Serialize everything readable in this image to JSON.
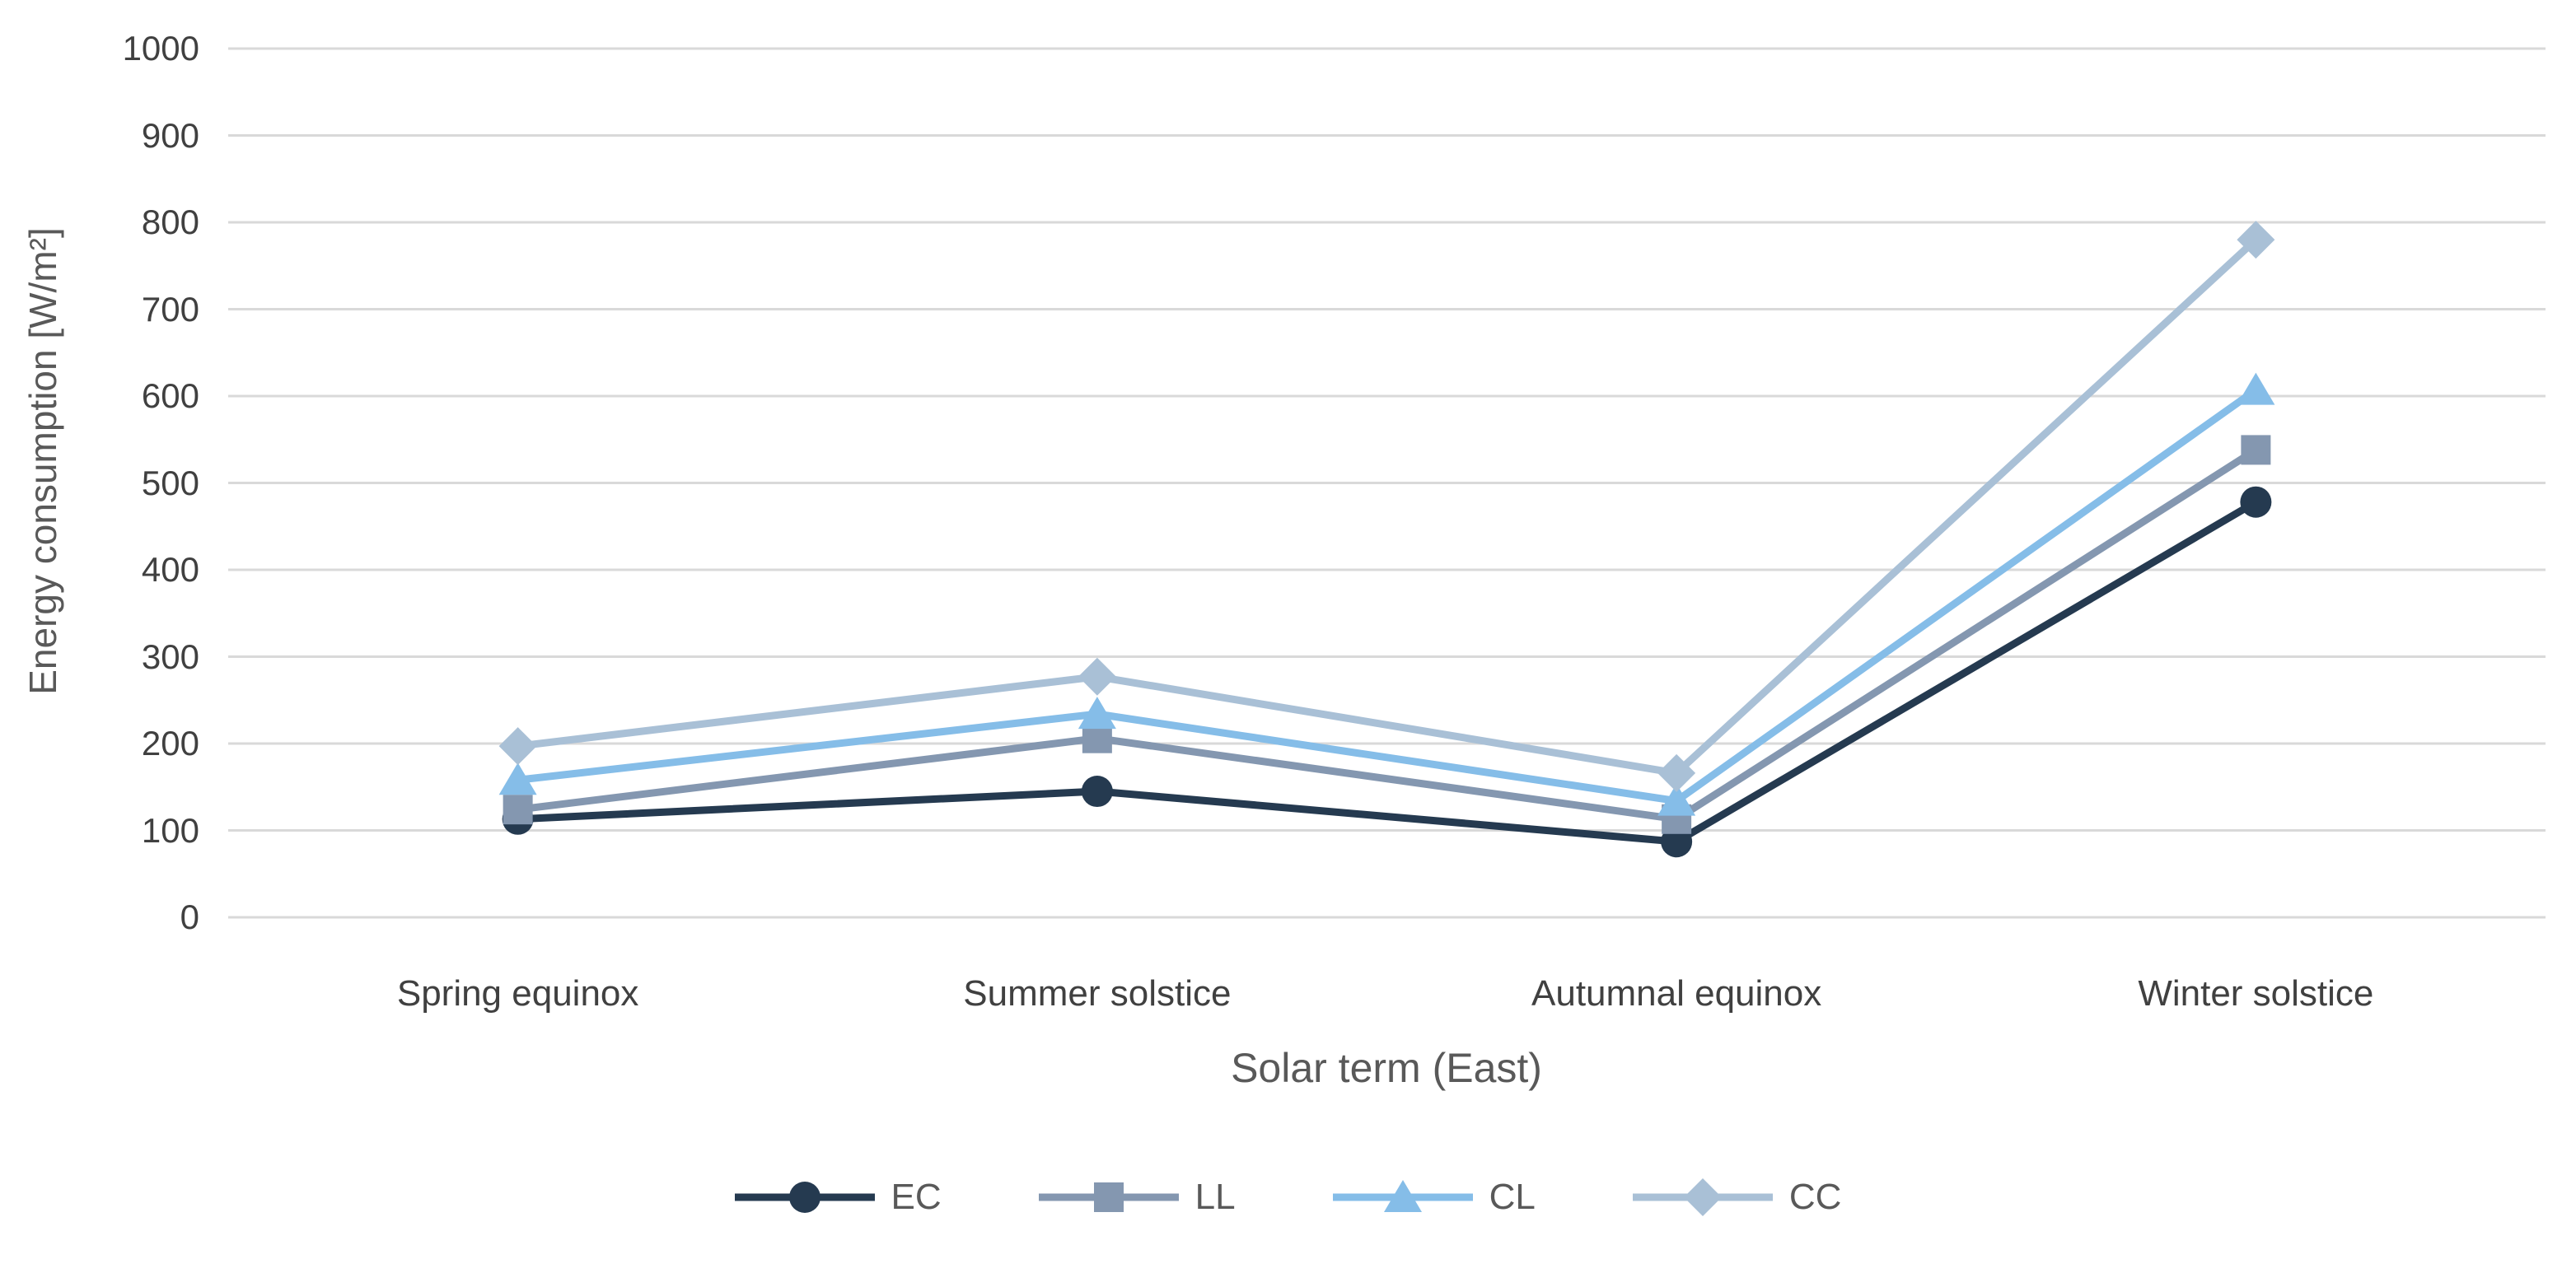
{
  "chart_data": {
    "type": "line",
    "title": "",
    "xlabel": "Solar term (East)",
    "ylabel": "Energy consumption [W/m²]",
    "categories": [
      "Spring equinox",
      "Summer solstice",
      "Autumnal equinox",
      "Winter solstice"
    ],
    "series": [
      {
        "name": "EC",
        "marker": "circle",
        "color": "#253A50",
        "values": [
          113,
          145,
          87,
          478
        ]
      },
      {
        "name": "LL",
        "marker": "square",
        "color": "#8497B0",
        "values": [
          124,
          206,
          113,
          538
        ]
      },
      {
        "name": "CL",
        "marker": "triangle",
        "color": "#85BDE8",
        "values": [
          158,
          234,
          134,
          607
        ]
      },
      {
        "name": "CC",
        "marker": "diamond",
        "color": "#A9C0D6",
        "values": [
          197,
          277,
          166,
          780
        ]
      }
    ],
    "ylim": [
      0,
      1000
    ],
    "ytick_step": 100,
    "yticks": [
      0,
      100,
      200,
      300,
      400,
      500,
      600,
      700,
      800,
      900,
      1000
    ],
    "grid": "horizontal gridlines only",
    "legend_position": "bottom",
    "colors": {
      "gridline": "#D9D9D9",
      "tick_label": "#404040",
      "axis_title": "#595959",
      "legend_label": "#595959",
      "background": "#FFFFFF"
    }
  }
}
